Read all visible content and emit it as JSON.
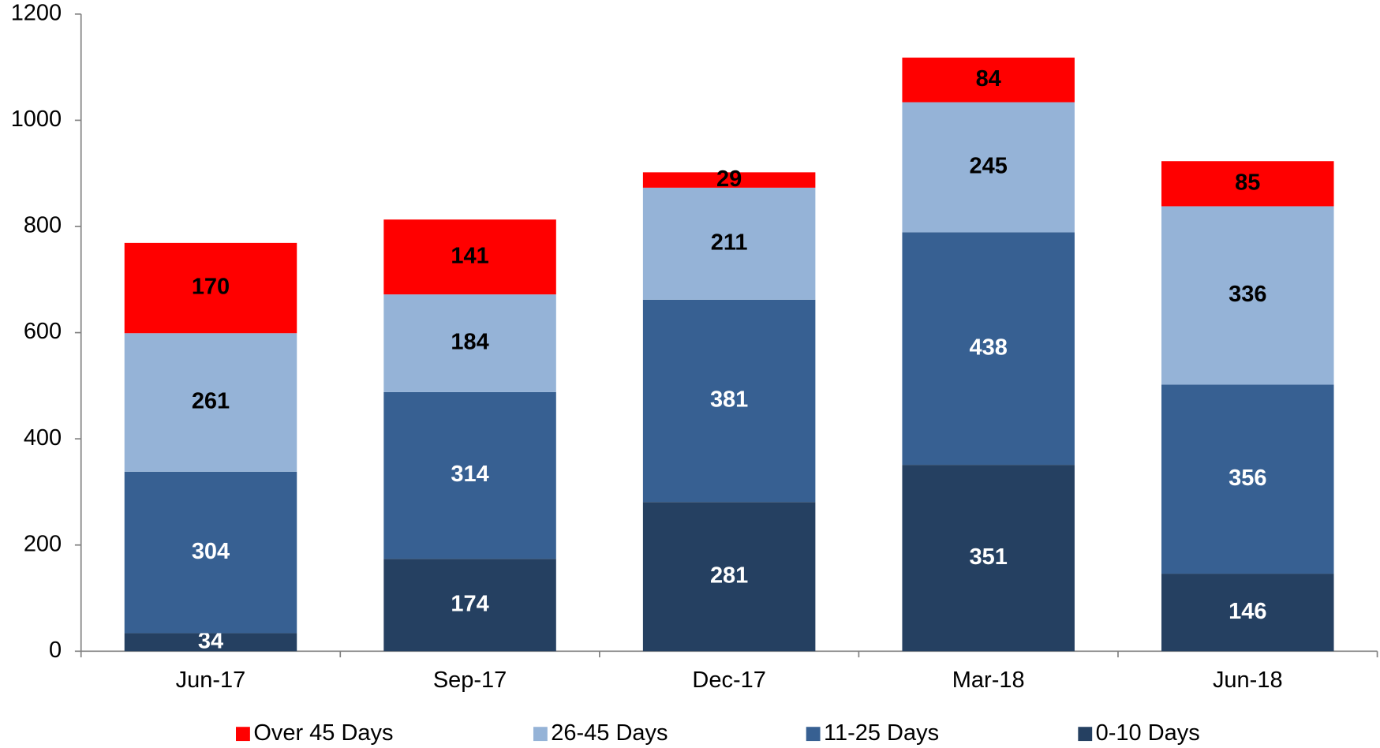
{
  "chart_data": {
    "type": "stacked_bar",
    "categories": [
      "Jun-17",
      "Sep-17",
      "Dec-17",
      "Mar-18",
      "Jun-18"
    ],
    "series": [
      {
        "name": "Over 45 Days",
        "color": "#ff0000",
        "label_color": "#000000",
        "values": [
          170,
          141,
          29,
          84,
          85
        ]
      },
      {
        "name": "26-45 Days",
        "color": "#95b3d7",
        "label_color": "#000000",
        "values": [
          261,
          184,
          211,
          245,
          336
        ]
      },
      {
        "name": "11-25 Days",
        "color": "#376092",
        "label_color": "#ffffff",
        "values": [
          304,
          314,
          381,
          438,
          356
        ]
      },
      {
        "name": "0-10 Days",
        "color": "#254061",
        "label_color": "#ffffff",
        "values": [
          34,
          174,
          281,
          351,
          146
        ]
      }
    ],
    "ylim": [
      0,
      1200
    ],
    "yticks": [
      0,
      200,
      400,
      600,
      800,
      1000,
      1200
    ],
    "legend": "bottom",
    "grid": false
  }
}
